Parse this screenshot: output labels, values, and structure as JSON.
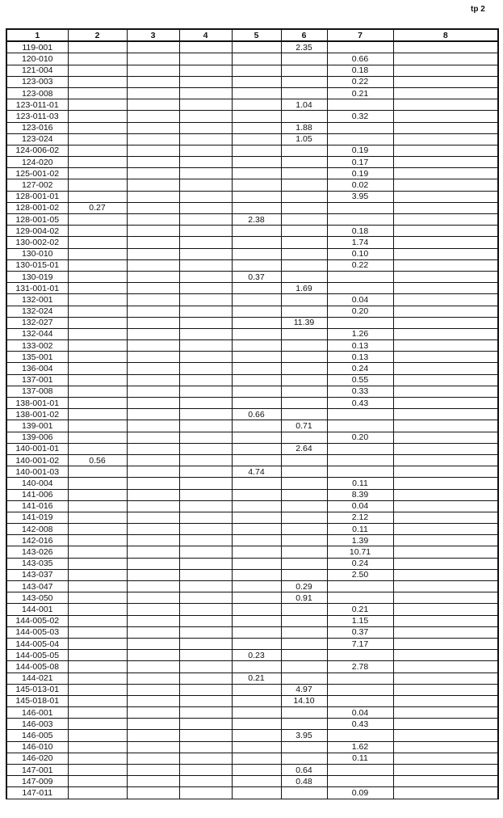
{
  "page_label": "tp 2",
  "table": {
    "headers": [
      "1",
      "2",
      "3",
      "4",
      "5",
      "6",
      "7",
      "8"
    ],
    "rows": [
      [
        "119-001",
        "",
        "",
        "",
        "",
        "2.35",
        "",
        ""
      ],
      [
        "120-010",
        "",
        "",
        "",
        "",
        "",
        "0.66",
        ""
      ],
      [
        "121-004",
        "",
        "",
        "",
        "",
        "",
        "0.18",
        ""
      ],
      [
        "123-003",
        "",
        "",
        "",
        "",
        "",
        "0.22",
        ""
      ],
      [
        "123-008",
        "",
        "",
        "",
        "",
        "",
        "0.21",
        ""
      ],
      [
        "123-011-01",
        "",
        "",
        "",
        "",
        "1.04",
        "",
        ""
      ],
      [
        "123-011-03",
        "",
        "",
        "",
        "",
        "",
        "0.32",
        ""
      ],
      [
        "123-016",
        "",
        "",
        "",
        "",
        "1.88",
        "",
        ""
      ],
      [
        "123-024",
        "",
        "",
        "",
        "",
        "1.05",
        "",
        ""
      ],
      [
        "124-006-02",
        "",
        "",
        "",
        "",
        "",
        "0.19",
        ""
      ],
      [
        "124-020",
        "",
        "",
        "",
        "",
        "",
        "0.17",
        ""
      ],
      [
        "125-001-02",
        "",
        "",
        "",
        "",
        "",
        "0.19",
        ""
      ],
      [
        "127-002",
        "",
        "",
        "",
        "",
        "",
        "0.02",
        ""
      ],
      [
        "128-001-01",
        "",
        "",
        "",
        "",
        "",
        "3.95",
        ""
      ],
      [
        "128-001-02",
        "0.27",
        "",
        "",
        "",
        "",
        "",
        ""
      ],
      [
        "128-001-05",
        "",
        "",
        "",
        "2.38",
        "",
        "",
        ""
      ],
      [
        "129-004-02",
        "",
        "",
        "",
        "",
        "",
        "0.18",
        ""
      ],
      [
        "130-002-02",
        "",
        "",
        "",
        "",
        "",
        "1.74",
        ""
      ],
      [
        "130-010",
        "",
        "",
        "",
        "",
        "",
        "0.10",
        ""
      ],
      [
        "130-015-01",
        "",
        "",
        "",
        "",
        "",
        "0.22",
        ""
      ],
      [
        "130-019",
        "",
        "",
        "",
        "0.37",
        "",
        "",
        ""
      ],
      [
        "131-001-01",
        "",
        "",
        "",
        "",
        "1.69",
        "",
        ""
      ],
      [
        "132-001",
        "",
        "",
        "",
        "",
        "",
        "0.04",
        ""
      ],
      [
        "132-024",
        "",
        "",
        "",
        "",
        "",
        "0.20",
        ""
      ],
      [
        "132-027",
        "",
        "",
        "",
        "",
        "11.39",
        "",
        ""
      ],
      [
        "132-044",
        "",
        "",
        "",
        "",
        "",
        "1.26",
        ""
      ],
      [
        "133-002",
        "",
        "",
        "",
        "",
        "",
        "0.13",
        ""
      ],
      [
        "135-001",
        "",
        "",
        "",
        "",
        "",
        "0.13",
        ""
      ],
      [
        "136-004",
        "",
        "",
        "",
        "",
        "",
        "0.24",
        ""
      ],
      [
        "137-001",
        "",
        "",
        "",
        "",
        "",
        "0.55",
        ""
      ],
      [
        "137-008",
        "",
        "",
        "",
        "",
        "",
        "0.33",
        ""
      ],
      [
        "138-001-01",
        "",
        "",
        "",
        "",
        "",
        "0.43",
        ""
      ],
      [
        "138-001-02",
        "",
        "",
        "",
        "0.66",
        "",
        "",
        ""
      ],
      [
        "139-001",
        "",
        "",
        "",
        "",
        "0.71",
        "",
        ""
      ],
      [
        "139-006",
        "",
        "",
        "",
        "",
        "",
        "0.20",
        ""
      ],
      [
        "140-001-01",
        "",
        "",
        "",
        "",
        "2.64",
        "",
        ""
      ],
      [
        "140-001-02",
        "0.56",
        "",
        "",
        "",
        "",
        "",
        ""
      ],
      [
        "140-001-03",
        "",
        "",
        "",
        "4.74",
        "",
        "",
        ""
      ],
      [
        "140-004",
        "",
        "",
        "",
        "",
        "",
        "0.11",
        ""
      ],
      [
        "141-006",
        "",
        "",
        "",
        "",
        "",
        "8.39",
        ""
      ],
      [
        "141-016",
        "",
        "",
        "",
        "",
        "",
        "0.04",
        ""
      ],
      [
        "141-019",
        "",
        "",
        "",
        "",
        "",
        "2.12",
        ""
      ],
      [
        "142-008",
        "",
        "",
        "",
        "",
        "",
        "0.11",
        ""
      ],
      [
        "142-016",
        "",
        "",
        "",
        "",
        "",
        "1.39",
        ""
      ],
      [
        "143-026",
        "",
        "",
        "",
        "",
        "",
        "10.71",
        ""
      ],
      [
        "143-035",
        "",
        "",
        "",
        "",
        "",
        "0.24",
        ""
      ],
      [
        "143-037",
        "",
        "",
        "",
        "",
        "",
        "2.50",
        ""
      ],
      [
        "143-047",
        "",
        "",
        "",
        "",
        "0.29",
        "",
        ""
      ],
      [
        "143-050",
        "",
        "",
        "",
        "",
        "0.91",
        "",
        ""
      ],
      [
        "144-001",
        "",
        "",
        "",
        "",
        "",
        "0.21",
        ""
      ],
      [
        "144-005-02",
        "",
        "",
        "",
        "",
        "",
        "1.15",
        ""
      ],
      [
        "144-005-03",
        "",
        "",
        "",
        "",
        "",
        "0.37",
        ""
      ],
      [
        "144-005-04",
        "",
        "",
        "",
        "",
        "",
        "7.17",
        ""
      ],
      [
        "144-005-05",
        "",
        "",
        "",
        "0.23",
        "",
        "",
        ""
      ],
      [
        "144-005-08",
        "",
        "",
        "",
        "",
        "",
        "2.78",
        ""
      ],
      [
        "144-021",
        "",
        "",
        "",
        "0.21",
        "",
        "",
        ""
      ],
      [
        "145-013-01",
        "",
        "",
        "",
        "",
        "4.97",
        "",
        ""
      ],
      [
        "145-018-01",
        "",
        "",
        "",
        "",
        "14.10",
        "",
        ""
      ],
      [
        "146-001",
        "",
        "",
        "",
        "",
        "",
        "0.04",
        ""
      ],
      [
        "146-003",
        "",
        "",
        "",
        "",
        "",
        "0.43",
        ""
      ],
      [
        "146-005",
        "",
        "",
        "",
        "",
        "3.95",
        "",
        ""
      ],
      [
        "146-010",
        "",
        "",
        "",
        "",
        "",
        "1.62",
        ""
      ],
      [
        "146-020",
        "",
        "",
        "",
        "",
        "",
        "0.11",
        ""
      ],
      [
        "147-001",
        "",
        "",
        "",
        "",
        "0.64",
        "",
        ""
      ],
      [
        "147-009",
        "",
        "",
        "",
        "",
        "0.48",
        "",
        ""
      ],
      [
        "147-011",
        "",
        "",
        "",
        "",
        "",
        "0.09",
        ""
      ]
    ]
  }
}
